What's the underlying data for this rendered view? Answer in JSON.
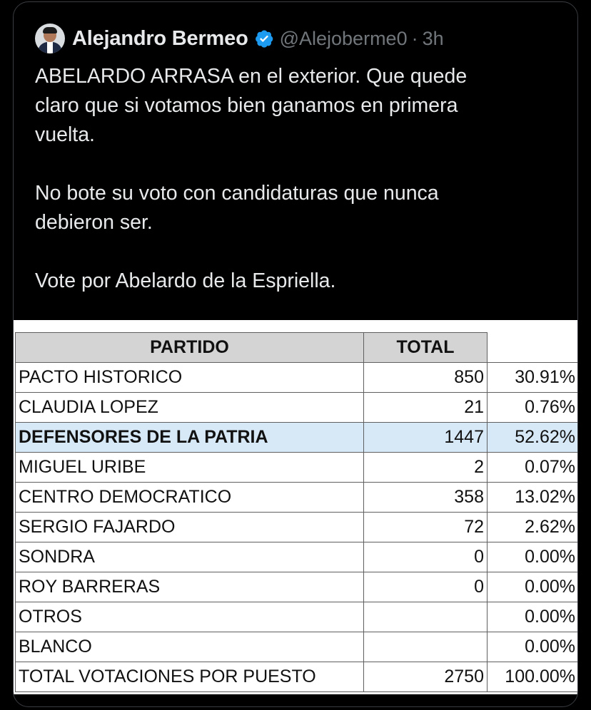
{
  "tweet": {
    "author_name": "Alejandro Bermeo",
    "handle": "@Alejoberme0",
    "separator": "·",
    "time": "3h",
    "lines": [
      "ABELARDO ARRASA en el exterior. Que quede",
      "claro que si votamos bien ganamos en primera",
      "vuelta.",
      "",
      "No bote su voto con candidaturas que nunca",
      "debieron ser.",
      "",
      "Vote por Abelardo de la Espriella."
    ],
    "icons": {
      "avatar": "profile-photo",
      "badge": "verified-badge-icon"
    },
    "colors": {
      "badge": "#1d9bf0",
      "muted": "#71767b",
      "highlight_row": "#d7e9f7"
    }
  },
  "table": {
    "headers": [
      "PARTIDO",
      "TOTAL",
      ""
    ],
    "rows": [
      {
        "partido": "PACTO HISTORICO",
        "total": "850",
        "pct": "30.91%",
        "highlight": false
      },
      {
        "partido": "CLAUDIA LOPEZ",
        "total": "21",
        "pct": "0.76%",
        "highlight": false
      },
      {
        "partido": "DEFENSORES DE LA PATRIA",
        "total": "1447",
        "pct": "52.62%",
        "highlight": true
      },
      {
        "partido": "MIGUEL URIBE",
        "total": "2",
        "pct": "0.07%",
        "highlight": false
      },
      {
        "partido": "CENTRO DEMOCRATICO",
        "total": "358",
        "pct": "13.02%",
        "highlight": false
      },
      {
        "partido": "SERGIO FAJARDO",
        "total": "72",
        "pct": "2.62%",
        "highlight": false
      },
      {
        "partido": "SONDRA",
        "total": "0",
        "pct": "0.00%",
        "highlight": false
      },
      {
        "partido": "ROY BARRERAS",
        "total": "0",
        "pct": "0.00%",
        "highlight": false
      },
      {
        "partido": "OTROS",
        "total": "",
        "pct": "0.00%",
        "highlight": false
      },
      {
        "partido": "BLANCO",
        "total": "",
        "pct": "0.00%",
        "highlight": false
      },
      {
        "partido": "TOTAL VOTACIONES POR PUESTO",
        "total": "2750",
        "pct": "100.00%",
        "highlight": false
      }
    ]
  }
}
